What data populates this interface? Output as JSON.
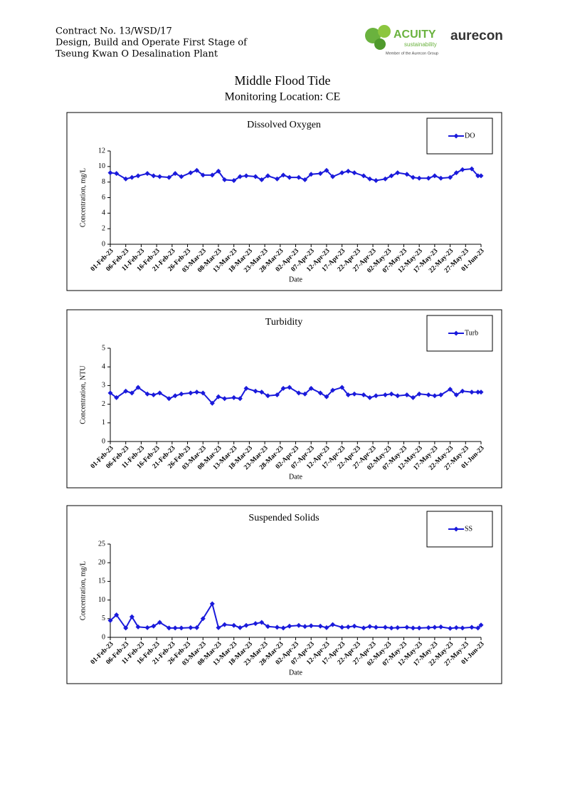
{
  "header": {
    "lines": [
      "Contract No. 13/WSD/17",
      "Design, Build and Operate First Stage of",
      "Tseung Kwan O Desalination Plant"
    ]
  },
  "logos": {
    "acuity": "ACUITY",
    "acuity_sub": "sustainability",
    "acuity_member": "Member of the Aurecon Group",
    "aurecon": "aurecon"
  },
  "page": {
    "title": "Middle Flood Tide",
    "subtitle": "Monitoring Location: CE"
  },
  "chart_data": [
    {
      "type": "line",
      "title": "Dissolved Oxygen",
      "xlabel": "Date",
      "ylabel": "Concentration, mg/L",
      "legend": "upper right",
      "x": [
        "2023-02-01",
        "2023-02-03",
        "2023-02-06",
        "2023-02-08",
        "2023-02-10",
        "2023-02-13",
        "2023-02-15",
        "2023-02-17",
        "2023-02-20",
        "2023-02-22",
        "2023-02-24",
        "2023-02-27",
        "2023-03-01",
        "2023-03-03",
        "2023-03-06",
        "2023-03-08",
        "2023-03-10",
        "2023-03-13",
        "2023-03-15",
        "2023-03-17",
        "2023-03-20",
        "2023-03-22",
        "2023-03-24",
        "2023-03-27",
        "2023-03-29",
        "2023-03-31",
        "2023-04-03",
        "2023-04-05",
        "2023-04-07",
        "2023-04-10",
        "2023-04-12",
        "2023-04-14",
        "2023-04-17",
        "2023-04-19",
        "2023-04-21",
        "2023-04-24",
        "2023-04-26",
        "2023-04-28",
        "2023-05-01",
        "2023-05-03",
        "2023-05-05",
        "2023-05-08",
        "2023-05-10",
        "2023-05-12",
        "2023-05-15",
        "2023-05-17",
        "2023-05-19",
        "2023-05-22",
        "2023-05-24",
        "2023-05-26",
        "2023-05-29",
        "2023-05-31",
        "2023-06-01"
      ],
      "xlim": [
        "2023-02-01",
        "2023-06-01"
      ],
      "xticks": [
        {
          "value": "2023-02-01",
          "label": "01-Feb-23"
        },
        {
          "value": "2023-02-06",
          "label": "06-Feb-23"
        },
        {
          "value": "2023-02-11",
          "label": "11-Feb-23"
        },
        {
          "value": "2023-02-16",
          "label": "16-Feb-23"
        },
        {
          "value": "2023-02-21",
          "label": "21-Feb-23"
        },
        {
          "value": "2023-02-26",
          "label": "26-Feb-23"
        },
        {
          "value": "2023-03-03",
          "label": "03-Mar-23"
        },
        {
          "value": "2023-03-08",
          "label": "08-Mar-23"
        },
        {
          "value": "2023-03-13",
          "label": "13-Mar-23"
        },
        {
          "value": "2023-03-18",
          "label": "18-Mar-23"
        },
        {
          "value": "2023-03-23",
          "label": "23-Mar-23"
        },
        {
          "value": "2023-03-28",
          "label": "28-Mar-23"
        },
        {
          "value": "2023-04-02",
          "label": "02-Apr-23"
        },
        {
          "value": "2023-04-07",
          "label": "07-Apr-23"
        },
        {
          "value": "2023-04-12",
          "label": "12-Apr-23"
        },
        {
          "value": "2023-04-17",
          "label": "17-Apr-23"
        },
        {
          "value": "2023-04-22",
          "label": "22-Apr-23"
        },
        {
          "value": "2023-04-27",
          "label": "27-Apr-23"
        },
        {
          "value": "2023-05-02",
          "label": "02-May-23"
        },
        {
          "value": "2023-05-07",
          "label": "07-May-23"
        },
        {
          "value": "2023-05-12",
          "label": "12-May-23"
        },
        {
          "value": "2023-05-17",
          "label": "17-May-23"
        },
        {
          "value": "2023-05-22",
          "label": "22-May-23"
        },
        {
          "value": "2023-05-27",
          "label": "27-May-23"
        },
        {
          "value": "2023-06-01",
          "label": "01-Jun-23"
        }
      ],
      "ylim": [
        0,
        12
      ],
      "yticks": [
        0,
        2,
        4,
        6,
        8,
        10,
        12
      ],
      "series": [
        {
          "name": "DO",
          "color": "#1a1adb",
          "values": [
            9.2,
            9.1,
            8.4,
            8.6,
            8.8,
            9.1,
            8.8,
            8.7,
            8.6,
            9.1,
            8.7,
            9.2,
            9.5,
            8.9,
            8.9,
            9.4,
            8.3,
            8.2,
            8.7,
            8.8,
            8.7,
            8.3,
            8.8,
            8.4,
            8.9,
            8.6,
            8.6,
            8.3,
            9.0,
            9.1,
            9.5,
            8.7,
            9.2,
            9.4,
            9.2,
            8.8,
            8.4,
            8.2,
            8.4,
            8.8,
            9.2,
            9.0,
            8.6,
            8.5,
            8.5,
            8.8,
            8.5,
            8.6,
            9.2,
            9.6,
            9.7,
            8.8,
            8.8
          ]
        }
      ]
    },
    {
      "type": "line",
      "title": "Turbidity",
      "xlabel": "Date",
      "ylabel": "Concentration, NTU",
      "legend": "upper right",
      "x": [
        "2023-02-01",
        "2023-02-03",
        "2023-02-06",
        "2023-02-08",
        "2023-02-10",
        "2023-02-13",
        "2023-02-15",
        "2023-02-17",
        "2023-02-20",
        "2023-02-22",
        "2023-02-24",
        "2023-02-27",
        "2023-03-01",
        "2023-03-03",
        "2023-03-06",
        "2023-03-08",
        "2023-03-10",
        "2023-03-13",
        "2023-03-15",
        "2023-03-17",
        "2023-03-20",
        "2023-03-22",
        "2023-03-24",
        "2023-03-27",
        "2023-03-29",
        "2023-03-31",
        "2023-04-03",
        "2023-04-05",
        "2023-04-07",
        "2023-04-10",
        "2023-04-12",
        "2023-04-14",
        "2023-04-17",
        "2023-04-19",
        "2023-04-21",
        "2023-04-24",
        "2023-04-26",
        "2023-04-28",
        "2023-05-01",
        "2023-05-03",
        "2023-05-05",
        "2023-05-08",
        "2023-05-10",
        "2023-05-12",
        "2023-05-15",
        "2023-05-17",
        "2023-05-19",
        "2023-05-22",
        "2023-05-24",
        "2023-05-26",
        "2023-05-29",
        "2023-05-31",
        "2023-06-01"
      ],
      "xlim": [
        "2023-02-01",
        "2023-06-01"
      ],
      "xticks": [
        {
          "value": "2023-02-01",
          "label": "01-Feb-23"
        },
        {
          "value": "2023-02-06",
          "label": "06-Feb-23"
        },
        {
          "value": "2023-02-11",
          "label": "11-Feb-23"
        },
        {
          "value": "2023-02-16",
          "label": "16-Feb-23"
        },
        {
          "value": "2023-02-21",
          "label": "21-Feb-23"
        },
        {
          "value": "2023-02-26",
          "label": "26-Feb-23"
        },
        {
          "value": "2023-03-03",
          "label": "03-Mar-23"
        },
        {
          "value": "2023-03-08",
          "label": "08-Mar-23"
        },
        {
          "value": "2023-03-13",
          "label": "13-Mar-23"
        },
        {
          "value": "2023-03-18",
          "label": "18-Mar-23"
        },
        {
          "value": "2023-03-23",
          "label": "23-Mar-23"
        },
        {
          "value": "2023-03-28",
          "label": "28-Mar-23"
        },
        {
          "value": "2023-04-02",
          "label": "02-Apr-23"
        },
        {
          "value": "2023-04-07",
          "label": "07-Apr-23"
        },
        {
          "value": "2023-04-12",
          "label": "12-Apr-23"
        },
        {
          "value": "2023-04-17",
          "label": "17-Apr-23"
        },
        {
          "value": "2023-04-22",
          "label": "22-Apr-23"
        },
        {
          "value": "2023-04-27",
          "label": "27-Apr-23"
        },
        {
          "value": "2023-05-02",
          "label": "02-May-23"
        },
        {
          "value": "2023-05-07",
          "label": "07-May-23"
        },
        {
          "value": "2023-05-12",
          "label": "12-May-23"
        },
        {
          "value": "2023-05-17",
          "label": "17-May-23"
        },
        {
          "value": "2023-05-22",
          "label": "22-May-23"
        },
        {
          "value": "2023-05-27",
          "label": "27-May-23"
        },
        {
          "value": "2023-06-01",
          "label": "01-Jun-23"
        }
      ],
      "ylim": [
        0,
        5
      ],
      "yticks": [
        0,
        1,
        2,
        3,
        4,
        5
      ],
      "series": [
        {
          "name": "Turb",
          "color": "#1a1adb",
          "values": [
            2.6,
            2.35,
            2.7,
            2.6,
            2.9,
            2.55,
            2.5,
            2.6,
            2.3,
            2.45,
            2.55,
            2.6,
            2.65,
            2.6,
            2.05,
            2.4,
            2.3,
            2.35,
            2.3,
            2.85,
            2.7,
            2.65,
            2.45,
            2.5,
            2.85,
            2.9,
            2.6,
            2.55,
            2.85,
            2.6,
            2.4,
            2.75,
            2.9,
            2.5,
            2.55,
            2.5,
            2.35,
            2.45,
            2.5,
            2.55,
            2.45,
            2.5,
            2.35,
            2.55,
            2.5,
            2.45,
            2.5,
            2.8,
            2.5,
            2.7,
            2.65,
            2.65,
            2.65
          ]
        }
      ]
    },
    {
      "type": "line",
      "title": "Suspended Solids",
      "xlabel": "Date",
      "ylabel": "Concentration, mg/L",
      "legend": "upper right",
      "x": [
        "2023-02-01",
        "2023-02-03",
        "2023-02-06",
        "2023-02-08",
        "2023-02-10",
        "2023-02-13",
        "2023-02-15",
        "2023-02-17",
        "2023-02-20",
        "2023-02-22",
        "2023-02-24",
        "2023-02-27",
        "2023-03-01",
        "2023-03-03",
        "2023-03-06",
        "2023-03-08",
        "2023-03-10",
        "2023-03-13",
        "2023-03-15",
        "2023-03-17",
        "2023-03-20",
        "2023-03-22",
        "2023-03-24",
        "2023-03-27",
        "2023-03-29",
        "2023-03-31",
        "2023-04-03",
        "2023-04-05",
        "2023-04-07",
        "2023-04-10",
        "2023-04-12",
        "2023-04-14",
        "2023-04-17",
        "2023-04-19",
        "2023-04-21",
        "2023-04-24",
        "2023-04-26",
        "2023-04-28",
        "2023-05-01",
        "2023-05-03",
        "2023-05-05",
        "2023-05-08",
        "2023-05-10",
        "2023-05-12",
        "2023-05-15",
        "2023-05-17",
        "2023-05-19",
        "2023-05-22",
        "2023-05-24",
        "2023-05-26",
        "2023-05-29",
        "2023-05-31",
        "2023-06-01"
      ],
      "xlim": [
        "2023-02-01",
        "2023-06-01"
      ],
      "xticks": [
        {
          "value": "2023-02-01",
          "label": "01-Feb-23"
        },
        {
          "value": "2023-02-06",
          "label": "06-Feb-23"
        },
        {
          "value": "2023-02-11",
          "label": "11-Feb-23"
        },
        {
          "value": "2023-02-16",
          "label": "16-Feb-23"
        },
        {
          "value": "2023-02-21",
          "label": "21-Feb-23"
        },
        {
          "value": "2023-02-26",
          "label": "26-Feb-23"
        },
        {
          "value": "2023-03-03",
          "label": "03-Mar-23"
        },
        {
          "value": "2023-03-08",
          "label": "08-Mar-23"
        },
        {
          "value": "2023-03-13",
          "label": "13-Mar-23"
        },
        {
          "value": "2023-03-18",
          "label": "18-Mar-23"
        },
        {
          "value": "2023-03-23",
          "label": "23-Mar-23"
        },
        {
          "value": "2023-03-28",
          "label": "28-Mar-23"
        },
        {
          "value": "2023-04-02",
          "label": "02-Apr-23"
        },
        {
          "value": "2023-04-07",
          "label": "07-Apr-23"
        },
        {
          "value": "2023-04-12",
          "label": "12-Apr-23"
        },
        {
          "value": "2023-04-17",
          "label": "17-Apr-23"
        },
        {
          "value": "2023-04-22",
          "label": "22-Apr-23"
        },
        {
          "value": "2023-04-27",
          "label": "27-Apr-23"
        },
        {
          "value": "2023-05-02",
          "label": "02-May-23"
        },
        {
          "value": "2023-05-07",
          "label": "07-May-23"
        },
        {
          "value": "2023-05-12",
          "label": "12-May-23"
        },
        {
          "value": "2023-05-17",
          "label": "17-May-23"
        },
        {
          "value": "2023-05-22",
          "label": "22-May-23"
        },
        {
          "value": "2023-05-27",
          "label": "27-May-23"
        },
        {
          "value": "2023-06-01",
          "label": "01-Jun-23"
        }
      ],
      "ylim": [
        0,
        25
      ],
      "yticks": [
        0,
        5,
        10,
        15,
        20,
        25
      ],
      "series": [
        {
          "name": "SS",
          "color": "#1a1adb",
          "values": [
            4.5,
            6,
            2.5,
            5.5,
            2.8,
            2.6,
            3,
            4,
            2.5,
            2.5,
            2.5,
            2.6,
            2.6,
            5,
            9,
            2.6,
            3.4,
            3.2,
            2.6,
            3.2,
            3.7,
            4,
            2.9,
            2.7,
            2.5,
            3,
            3.2,
            2.9,
            3.1,
            3,
            2.6,
            3.4,
            2.7,
            2.8,
            3,
            2.5,
            2.9,
            2.7,
            2.7,
            2.5,
            2.6,
            2.7,
            2.5,
            2.5,
            2.6,
            2.7,
            2.8,
            2.4,
            2.6,
            2.5,
            2.7,
            2.5,
            3.3
          ]
        }
      ]
    }
  ]
}
